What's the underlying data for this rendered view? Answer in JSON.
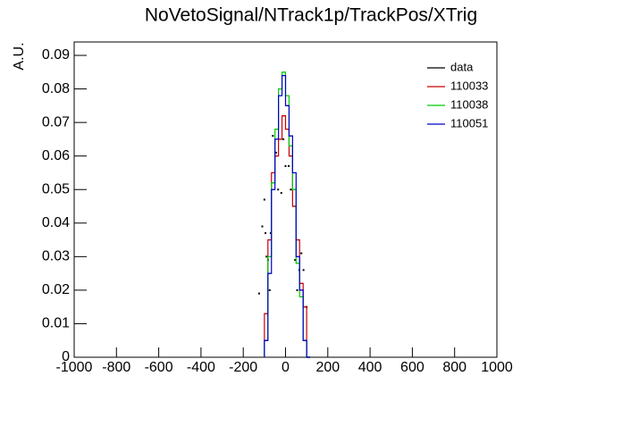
{
  "chart_data": {
    "type": "histogram",
    "title": "NoVetoSignal/NTrack1p/TrackPos/XTrig",
    "y_label": "A.U.",
    "bins": [
      -100,
      -83.33,
      -66.67,
      -50,
      -33.33,
      -16.67,
      0,
      16.67,
      33.33,
      50,
      66.67,
      83.33,
      100,
      116.67
    ],
    "series": [
      {
        "name": "data",
        "color": "#000000",
        "x": [
          -125,
          -110,
          -100,
          -95,
          -90,
          -83,
          -75,
          -70,
          -60,
          -45,
          -35,
          -20,
          -10,
          0,
          15,
          25,
          45,
          55,
          65,
          75,
          85,
          100
        ],
        "values": [
          0.019,
          0.039,
          0.047,
          0.037,
          0.03,
          0.029,
          0.02,
          0.037,
          0.066,
          0.061,
          0.05,
          0.049,
          0.065,
          0.057,
          0.057,
          0.05,
          0.029,
          0.02,
          0.026,
          0.031,
          0.026,
          0.015
        ]
      },
      {
        "name": "110033",
        "color": "#cc0000",
        "values": [
          0.013,
          0.035,
          0.055,
          0.06,
          0.065,
          0.072,
          0.068,
          0.06,
          0.045,
          0.035,
          0.022,
          0.015,
          0
        ]
      },
      {
        "name": "110038",
        "color": "#00cc00",
        "values": [
          0.005,
          0.03,
          0.052,
          0.068,
          0.08,
          0.085,
          0.078,
          0.063,
          0.05,
          0.028,
          0.018,
          0.005,
          0
        ]
      },
      {
        "name": "110051",
        "color": "#0000cc",
        "values": [
          0.005,
          0.025,
          0.05,
          0.065,
          0.078,
          0.084,
          0.075,
          0.066,
          0.055,
          0.03,
          0.02,
          0.005,
          0
        ]
      }
    ],
    "xlim": [
      -1000,
      1000
    ],
    "ylim": [
      0,
      0.094
    ],
    "xticks": [
      -1000,
      -800,
      -600,
      -400,
      -200,
      0,
      200,
      400,
      600,
      800,
      1000
    ],
    "yticks": [
      0,
      0.01,
      0.02,
      0.03,
      0.04,
      0.05,
      0.06,
      0.07,
      0.08,
      0.09
    ],
    "legend": "top-right"
  }
}
